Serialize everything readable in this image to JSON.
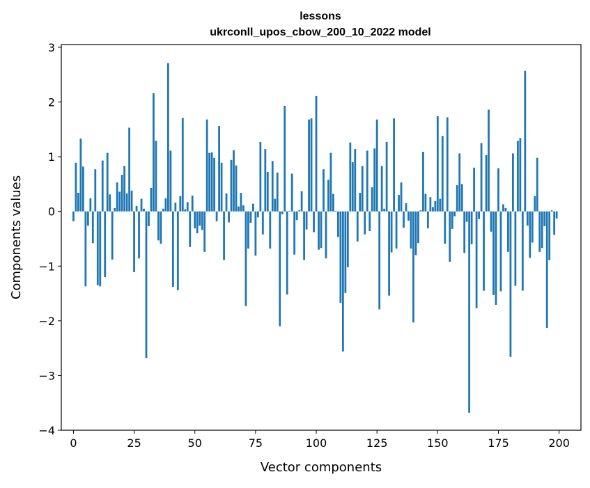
{
  "chart_data": {
    "type": "bar",
    "title": "lessons",
    "subtitle": "ukrconll_upos_cbow_200_10_2022 model",
    "xlabel": "Vector components",
    "ylabel": "Components values",
    "xlim": [
      -5,
      209
    ],
    "ylim": [
      -4,
      3.05
    ],
    "xticks": [
      0,
      25,
      50,
      75,
      100,
      125,
      150,
      175,
      200
    ],
    "xtick_labels": [
      "0",
      "25",
      "50",
      "75",
      "100",
      "125",
      "150",
      "175",
      "200"
    ],
    "yticks": [
      -4,
      -3,
      -2,
      -1,
      0,
      1,
      2,
      3
    ],
    "ytick_labels": [
      "−4",
      "−3",
      "−2",
      "−1",
      "0",
      "1",
      "2",
      "3"
    ],
    "grid": false,
    "bar_color": "#1f77b4",
    "x": [
      0,
      1,
      2,
      3,
      4,
      5,
      6,
      7,
      8,
      9,
      10,
      11,
      12,
      13,
      14,
      15,
      16,
      17,
      18,
      19,
      20,
      21,
      22,
      23,
      24,
      25,
      26,
      27,
      28,
      29,
      30,
      31,
      32,
      33,
      34,
      35,
      36,
      37,
      38,
      39,
      40,
      41,
      42,
      43,
      44,
      45,
      46,
      47,
      48,
      49,
      50,
      51,
      52,
      53,
      54,
      55,
      56,
      57,
      58,
      59,
      60,
      61,
      62,
      63,
      64,
      65,
      66,
      67,
      68,
      69,
      70,
      71,
      72,
      73,
      74,
      75,
      76,
      77,
      78,
      79,
      80,
      81,
      82,
      83,
      84,
      85,
      86,
      87,
      88,
      89,
      90,
      91,
      92,
      93,
      94,
      95,
      96,
      97,
      98,
      99,
      100,
      101,
      102,
      103,
      104,
      105,
      106,
      107,
      108,
      109,
      110,
      111,
      112,
      113,
      114,
      115,
      116,
      117,
      118,
      119,
      120,
      121,
      122,
      123,
      124,
      125,
      126,
      127,
      128,
      129,
      130,
      131,
      132,
      133,
      134,
      135,
      136,
      137,
      138,
      139,
      140,
      141,
      142,
      143,
      144,
      145,
      146,
      147,
      148,
      149,
      150,
      151,
      152,
      153,
      154,
      155,
      156,
      157,
      158,
      159,
      160,
      161,
      162,
      163,
      164,
      165,
      166,
      167,
      168,
      169,
      170,
      171,
      172,
      173,
      174,
      175,
      176,
      177,
      178,
      179,
      180,
      181,
      182,
      183,
      184,
      185,
      186,
      187,
      188,
      189,
      190,
      191,
      192,
      193,
      194,
      195,
      196,
      197,
      198,
      199
    ],
    "values": [
      -0.18,
      0.89,
      0.34,
      1.33,
      0.82,
      -1.37,
      -0.26,
      0.24,
      -0.58,
      0.77,
      -1.35,
      -1.37,
      0.93,
      -1.2,
      1.07,
      0.31,
      -0.88,
      0.06,
      0.53,
      0.36,
      0.67,
      0.83,
      0.33,
      1.53,
      0.38,
      -1.11,
      0.1,
      -0.86,
      0.23,
      0.05,
      -2.68,
      -0.27,
      0.43,
      2.16,
      1.29,
      -0.53,
      -0.59,
      0.05,
      0.24,
      2.71,
      1.11,
      -1.38,
      0.16,
      -1.44,
      0.28,
      1.71,
      0.04,
      0.17,
      -0.65,
      0.29,
      -0.31,
      -0.4,
      -0.26,
      -0.34,
      -0.74,
      1.68,
      1.07,
      1.08,
      0.98,
      -0.18,
      1.56,
      0.89,
      -0.89,
      0.33,
      -0.2,
      0.94,
      1.12,
      0.84,
      0.09,
      0.34,
      0.11,
      -1.73,
      -0.68,
      -0.21,
      0.14,
      -0.81,
      -0.11,
      1.27,
      -0.42,
      1.14,
      0.72,
      -0.68,
      0.92,
      0.23,
      0.71,
      -2.1,
      -0.05,
      1.93,
      -1.52,
      0.01,
      0.69,
      -0.79,
      -0.16,
      0.02,
      0.37,
      -0.89,
      -0.33,
      1.68,
      1.7,
      -0.38,
      2.11,
      -0.7,
      -0.67,
      0.77,
      -0.86,
      0.58,
      1.07,
      0.32,
      0.01,
      -0.47,
      -1.67,
      -2.56,
      -1.49,
      -1.02,
      1.26,
      0.9,
      1.14,
      -0.55,
      0.34,
      0.83,
      -0.42,
      1.11,
      -0.36,
      0.44,
      1.15,
      1.68,
      -1.79,
      0.83,
      0.05,
      1.27,
      -1.54,
      -0.75,
      1.7,
      -0.68,
      0.3,
      0.53,
      -0.3,
      0.15,
      -0.17,
      -0.68,
      -2.03,
      -0.8,
      -0.58,
      0.02,
      1.09,
      0.32,
      -0.31,
      0.26,
      0.08,
      0.19,
      1.74,
      0.23,
      1.38,
      -0.59,
      1.72,
      -0.92,
      -0.32,
      -0.09,
      0.48,
      1.06,
      0.5,
      -0.76,
      -0.19,
      -3.68,
      -0.6,
      0.8,
      -1.77,
      -0.14,
      1.25,
      -1.45,
      1.03,
      1.86,
      -0.37,
      -1.53,
      -1.71,
      0.79,
      -1.46,
      0.13,
      0.06,
      -0.74,
      -2.66,
      1.06,
      -1.36,
      1.29,
      1.34,
      -1.45,
      2.57,
      -0.26,
      -0.85,
      -0.57,
      0.28,
      0.98,
      -0.74,
      -0.67,
      -0.27,
      -2.13,
      -0.89,
      0.02,
      -0.43,
      -0.13
    ]
  }
}
